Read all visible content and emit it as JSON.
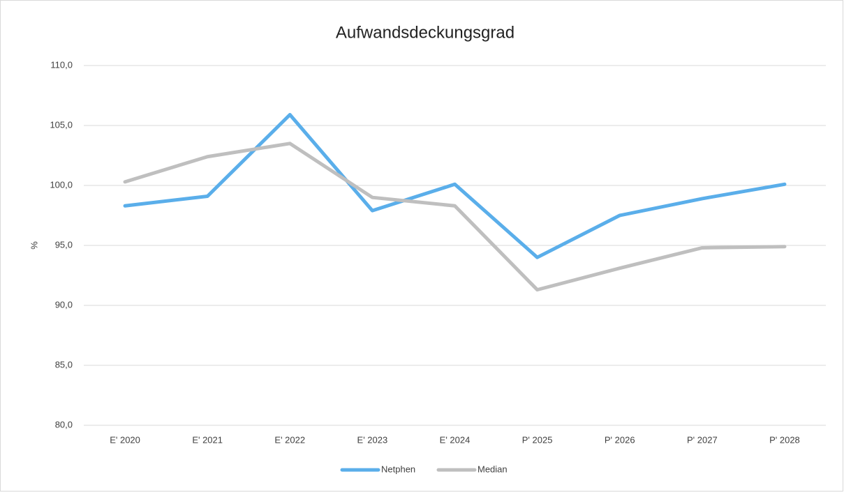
{
  "chart_data": {
    "type": "line",
    "title": "Aufwandsdeckungsgrad",
    "y_label": "%",
    "categories": [
      "E' 2020",
      "E' 2021",
      "E' 2022",
      "E' 2023",
      "E' 2024",
      "P' 2025",
      "P' 2026",
      "P' 2027",
      "P' 2028"
    ],
    "series": [
      {
        "name": "Netphen",
        "color": "#5aaeea",
        "values": [
          98.3,
          99.1,
          105.9,
          97.9,
          100.1,
          94.0,
          97.5,
          98.9,
          100.1
        ]
      },
      {
        "name": "Median",
        "color": "#bfbfbf",
        "values": [
          100.3,
          102.4,
          103.5,
          99.0,
          98.3,
          91.3,
          93.1,
          94.8,
          94.9
        ]
      }
    ],
    "ylim": [
      80,
      110
    ],
    "yticks": [
      {
        "value": 80,
        "label": "80,0"
      },
      {
        "value": 85,
        "label": "85,0"
      },
      {
        "value": 90,
        "label": "90,0"
      },
      {
        "value": 95,
        "label": "95,0"
      },
      {
        "value": 100,
        "label": "100,0"
      },
      {
        "value": 105,
        "label": "105,0"
      },
      {
        "value": 110,
        "label": "110,0"
      }
    ],
    "grid": true,
    "legend": "bottom"
  }
}
